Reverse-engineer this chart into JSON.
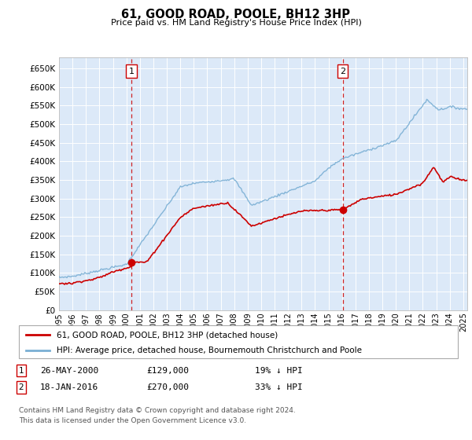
{
  "title": "61, GOOD ROAD, POOLE, BH12 3HP",
  "subtitle": "Price paid vs. HM Land Registry's House Price Index (HPI)",
  "ylim": [
    0,
    680000
  ],
  "xlim_start": 1995.0,
  "xlim_end": 2025.3,
  "bg_color": "#dce9f8",
  "fig_bg": "#ffffff",
  "grid_color": "#ffffff",
  "sale1_x": 2000.38,
  "sale1_y": 129000,
  "sale2_x": 2016.05,
  "sale2_y": 270000,
  "legend_line1": "61, GOOD ROAD, POOLE, BH12 3HP (detached house)",
  "legend_line2": "HPI: Average price, detached house, Bournemouth Christchurch and Poole",
  "table_row1_num": "1",
  "table_row1_date": "26-MAY-2000",
  "table_row1_price": "£129,000",
  "table_row1_hpi": "19% ↓ HPI",
  "table_row2_num": "2",
  "table_row2_date": "18-JAN-2016",
  "table_row2_price": "£270,000",
  "table_row2_hpi": "33% ↓ HPI",
  "footnote1": "Contains HM Land Registry data © Crown copyright and database right 2024.",
  "footnote2": "This data is licensed under the Open Government Licence v3.0.",
  "line_red_color": "#cc0000",
  "line_blue_color": "#7aafd4",
  "dashed_line_color": "#cc0000",
  "ytick_vals": [
    0,
    50000,
    100000,
    150000,
    200000,
    250000,
    300000,
    350000,
    400000,
    450000,
    500000,
    550000,
    600000,
    650000
  ],
  "ytick_labels": [
    "£0",
    "£50K",
    "£100K",
    "£150K",
    "£200K",
    "£250K",
    "£300K",
    "£350K",
    "£400K",
    "£450K",
    "£500K",
    "£550K",
    "£600K",
    "£650K"
  ],
  "xtick_start": 1995,
  "xtick_end": 2025
}
